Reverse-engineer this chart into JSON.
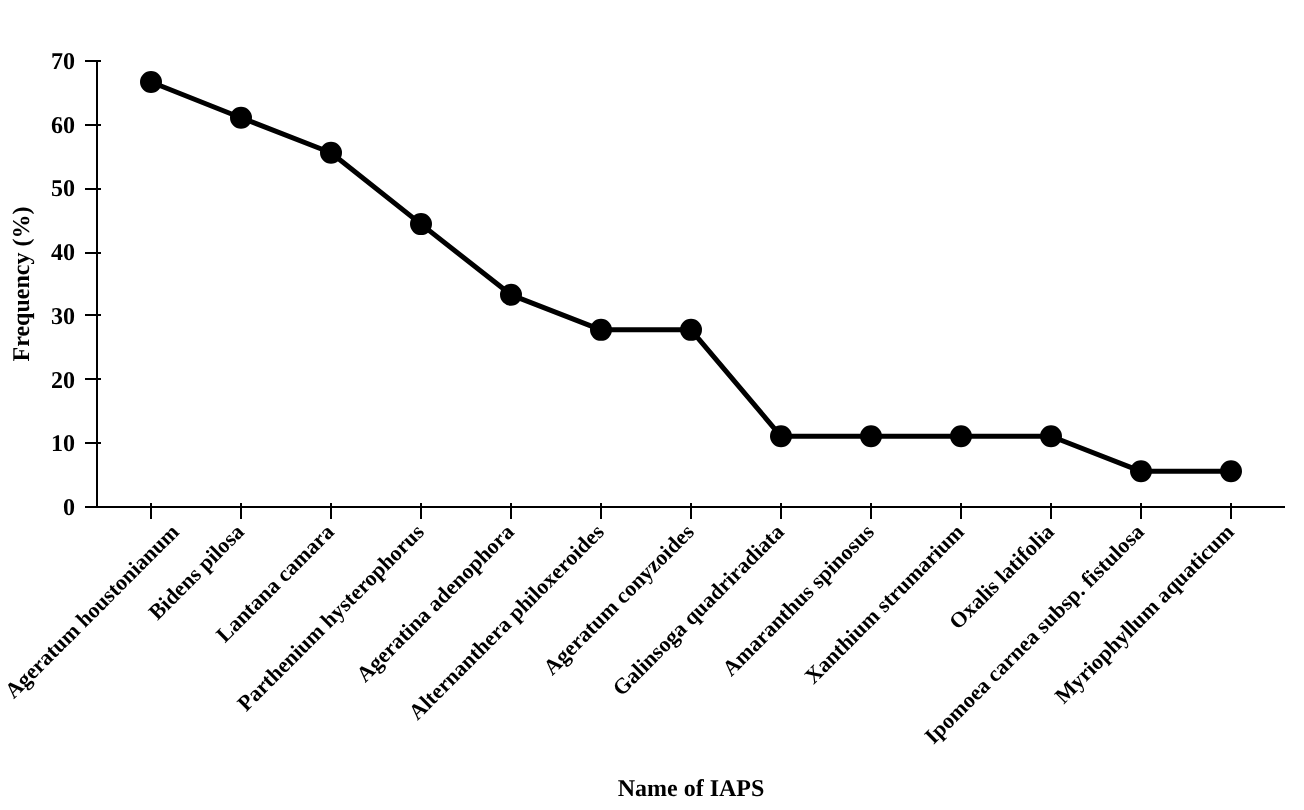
{
  "chart_data": {
    "type": "line",
    "xlabel": "Name of IAPS",
    "ylabel": "Frequency (%)",
    "categories": [
      "Ageratum houstonianum",
      "Bidens pilosa",
      "Lantana camara",
      "Parthenium hysterophorus",
      "Ageratina adenophora",
      "Alternanthera philoxeroides",
      "Ageratum conyzoides",
      "Galinsoga quadriradiata",
      "Amaranthus spinosus",
      "Xanthium strumarium",
      "Oxalis latifolia",
      "Ipomoea carnea subsp. fistulosa",
      "Myriophyllum aquaticum"
    ],
    "series": [
      {
        "color": "#000000",
        "values": [
          66.7,
          61.1,
          55.6,
          44.4,
          33.3,
          27.8,
          27.8,
          11.1,
          11.1,
          11.1,
          11.1,
          5.6,
          5.6
        ]
      }
    ],
    "ylim": [
      0,
      70
    ],
    "yticks": [
      0,
      10,
      20,
      30,
      40,
      50,
      60,
      70
    ],
    "grid": false,
    "marker": "circle",
    "line_style": "solid"
  }
}
